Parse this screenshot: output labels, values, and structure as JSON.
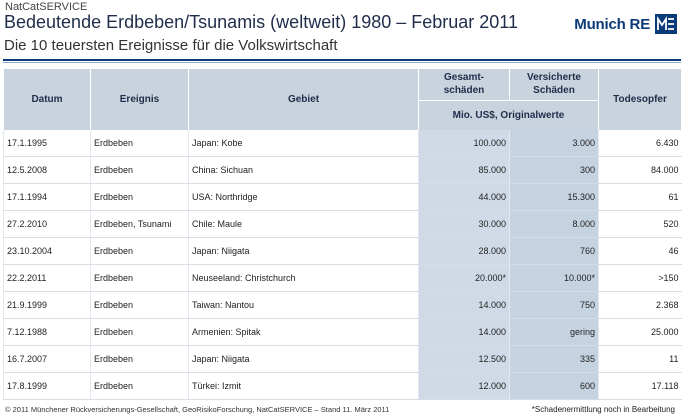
{
  "header": {
    "supertitle": "NatCatSERVICE",
    "title": "Bedeutende Erdbeben/Tsunamis (weltweit) 1980 – Februar 2011",
    "subtitle": "Die 10 teuersten Ereignisse für die Volkswirtschaft",
    "logo_text": "Munich RE"
  },
  "table": {
    "columns": {
      "datum": "Datum",
      "ereignis": "Ereignis",
      "gebiet": "Gebiet",
      "gesamt": "Gesamt-\nschäden",
      "versichert": "Versicherte\nSchäden",
      "todesopfer": "Todesopfer",
      "unit": "Mio. US$, Originalwerte"
    },
    "rows": [
      {
        "datum": "17.1.1995",
        "ereignis": "Erdbeben",
        "gebiet": "Japan: Kobe",
        "gesamt": "100.000",
        "versichert": "3.000",
        "tote": "6.430"
      },
      {
        "datum": "12.5.2008",
        "ereignis": "Erdbeben",
        "gebiet": "China: Sichuan",
        "gesamt": "85.000",
        "versichert": "300",
        "tote": "84.000"
      },
      {
        "datum": "17.1.1994",
        "ereignis": "Erdbeben",
        "gebiet": "USA: Northridge",
        "gesamt": "44.000",
        "versichert": "15.300",
        "tote": "61"
      },
      {
        "datum": "27.2.2010",
        "ereignis": "Erdbeben, Tsunami",
        "gebiet": "Chile: Maule",
        "gesamt": "30.000",
        "versichert": "8.000",
        "tote": "520"
      },
      {
        "datum": "23.10.2004",
        "ereignis": "Erdbeben",
        "gebiet": "Japan: Niigata",
        "gesamt": "28.000",
        "versichert": "760",
        "tote": "46"
      },
      {
        "datum": "22.2.2011",
        "ereignis": "Erdbeben",
        "gebiet": "Neuseeland: Christchurch",
        "gesamt": "20.000*",
        "versichert": "10.000*",
        "tote": ">150"
      },
      {
        "datum": "21.9.1999",
        "ereignis": "Erdbeben",
        "gebiet": "Taiwan: Nantou",
        "gesamt": "14.000",
        "versichert": "750",
        "tote": "2.368"
      },
      {
        "datum": "7.12.1988",
        "ereignis": "Erdbeben",
        "gebiet": "Armenien: Spitak",
        "gesamt": "14.000",
        "versichert": "gering",
        "tote": "25.000"
      },
      {
        "datum": "16.7.2007",
        "ereignis": "Erdbeben",
        "gebiet": "Japan: Niigata",
        "gesamt": "12.500",
        "versichert": "335",
        "tote": "11"
      },
      {
        "datum": "17.8.1999",
        "ereignis": "Erdbeben",
        "gebiet": "Türkei: Izmit",
        "gesamt": "12.000",
        "versichert": "600",
        "tote": "17.118"
      }
    ]
  },
  "footer": {
    "copyright": "© 2011 Münchener Rückversicherungs-Gesellschaft, GeoRisikoForschung, NatCatSERVICE – Stand 11. März 2011",
    "note": "*Schadenermittlung noch in Bearbeitung"
  },
  "colors": {
    "brand": "#0b3a78",
    "header_bg": "#c9d3dd",
    "value_col_bg": "#cfdae6"
  }
}
